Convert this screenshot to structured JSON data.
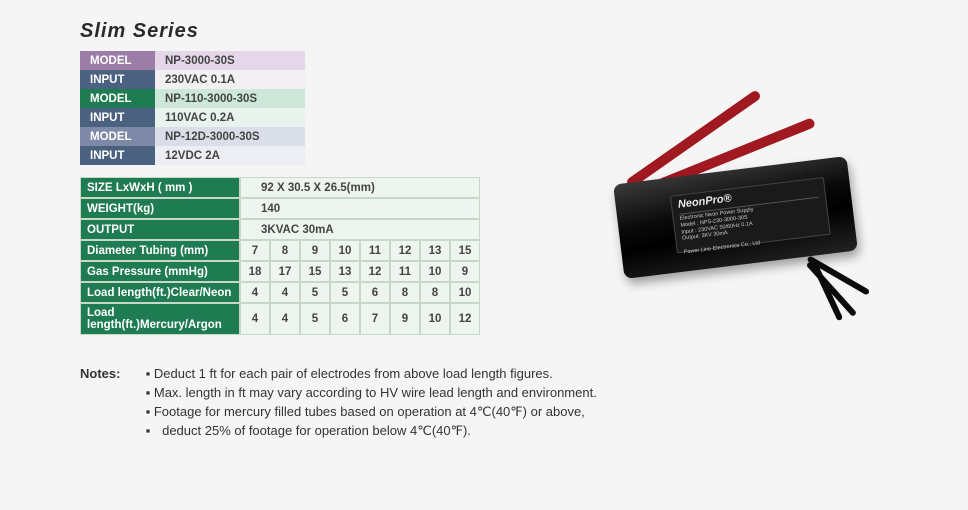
{
  "title": "Slim Series",
  "models": [
    {
      "model": "NP-3000-30S",
      "input": "230VAC 0.1A",
      "model_bg": "#9b7da8",
      "model_val_bg": "#e4d7e9",
      "input_bg": "#4a617f",
      "input_val_bg": "#f2f0f3"
    },
    {
      "model": "NP-110-3000-30S",
      "input": "110VAC 0.2A",
      "model_bg": "#1f7b52",
      "model_val_bg": "#cde8d9",
      "input_bg": "#4a617f",
      "input_val_bg": "#e8f3ed"
    },
    {
      "model": "NP-12D-3000-30S",
      "input": "12VDC 2A",
      "model_bg": "#7d89a6",
      "model_val_bg": "#dadee8",
      "input_bg": "#4a617f",
      "input_val_bg": "#eceef3"
    }
  ],
  "spec_rows_wide": [
    {
      "label": "SIZE LxWxH ( mm )",
      "value": "92 X 30.5 X 26.5(mm)",
      "bg": "#1f7b52"
    },
    {
      "label": "WEIGHT(kg)",
      "value": "140",
      "bg": "#1f7b52"
    },
    {
      "label": "OUTPUT",
      "value": "3KVAC   30mA",
      "bg": "#1f7b52"
    }
  ],
  "spec_rows_grid": [
    {
      "label": "Diameter Tubing (mm)",
      "bg": "#1f7b52",
      "cells": [
        "7",
        "8",
        "9",
        "10",
        "11",
        "12",
        "13",
        "15"
      ]
    },
    {
      "label": "Gas Pressure (mmHg)",
      "bg": "#1f7b52",
      "cells": [
        "18",
        "17",
        "15",
        "13",
        "12",
        "11",
        "10",
        "9"
      ]
    },
    {
      "label": "Load length(ft.)Clear/Neon",
      "bg": "#1f7b52",
      "cells": [
        "4",
        "4",
        "5",
        "5",
        "6",
        "8",
        "8",
        "10"
      ]
    },
    {
      "label": "Load length(ft.)Mercury/Argon",
      "bg": "#1f7b52",
      "cells": [
        "4",
        "4",
        "5",
        "6",
        "7",
        "9",
        "10",
        "12"
      ]
    }
  ],
  "notes_label": "Notes:",
  "notes": [
    "Deduct 1 ft for each pair of electrodes from above load length figures.",
    "Max. length in ft may vary according to HV wire lead length and environment.",
    "Footage for mercury filled tubes based on operation at 4℃(40℉) or above,",
    "deduct 25% of footage for operation below 4℃(40℉)."
  ],
  "product_label": {
    "brand": "NeonPro®",
    "lines": [
      "Electronic Neon Power Supply",
      "Model : NPS-230-3000-30S",
      "Input  : 230VAC 50/60Hz 0.1A",
      "Output: 3KV 30mA",
      "",
      "Power Line Electronics Co., Ltd"
    ]
  },
  "colors": {
    "wire_red": "#a01820",
    "body": "#0a0a0a"
  }
}
